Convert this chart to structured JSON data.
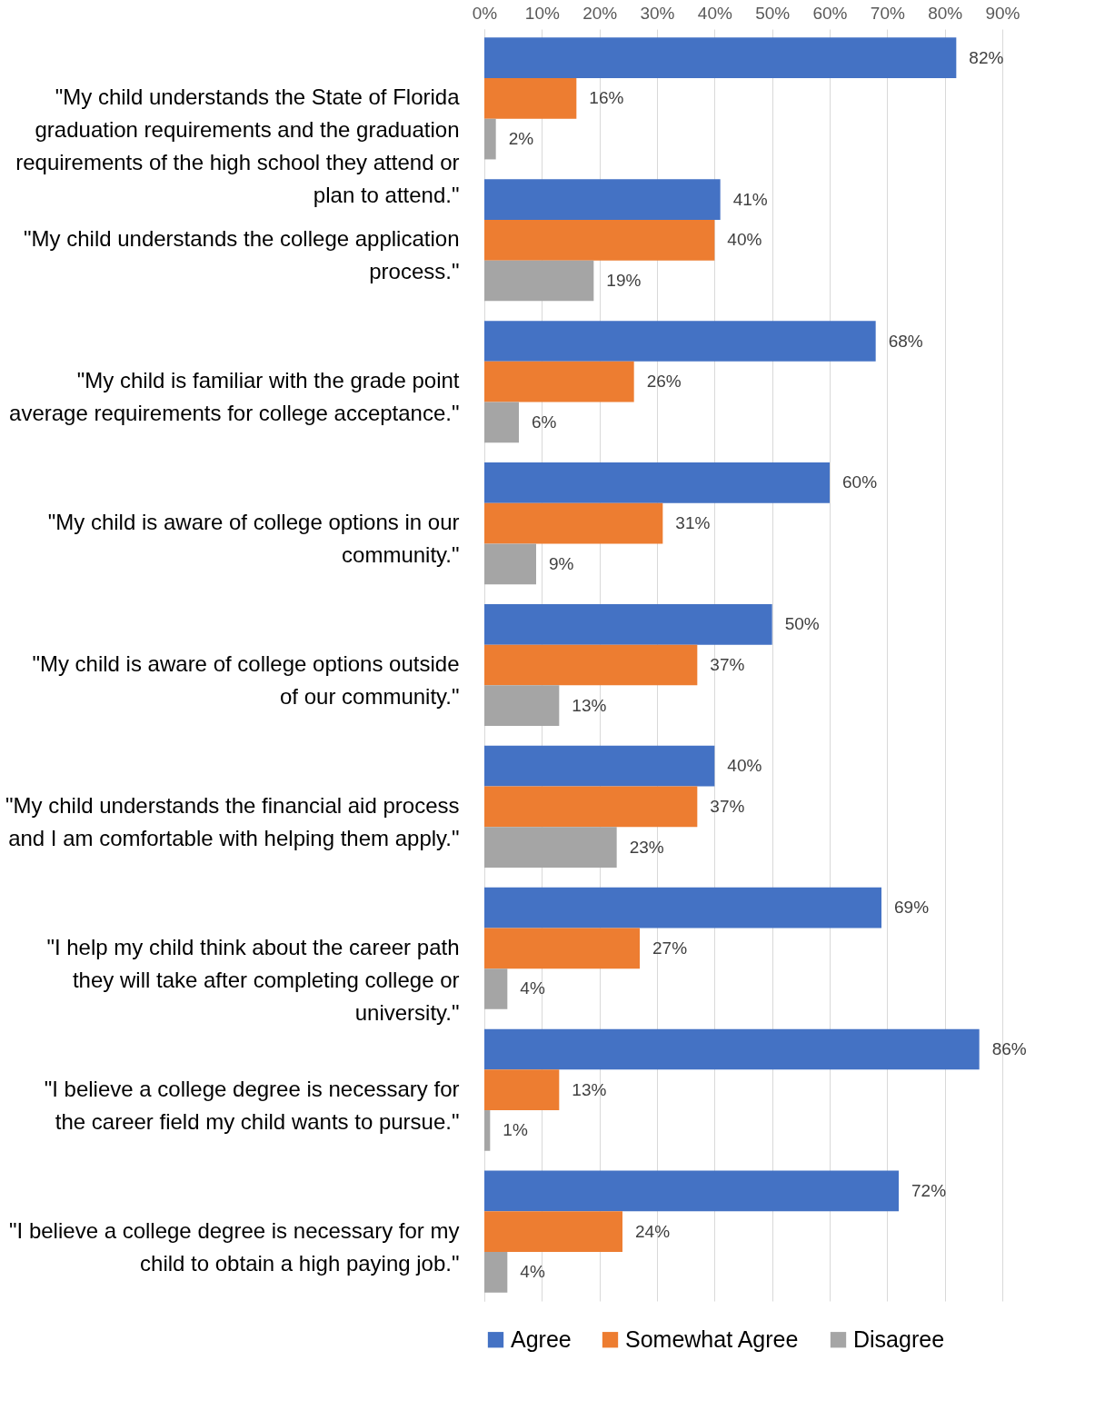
{
  "chart_data": {
    "type": "bar",
    "orientation": "horizontal",
    "categories": [
      "\"My child understands the State of Florida graduation requirements and the graduation requirements of the high school they attend or plan to attend.\"",
      "\"My child understands the college application process.\"",
      "\"My child is familiar with the grade point average requirements for college acceptance.\"",
      "\"My child is aware of college options in our community.\"",
      "\"My child is aware of college options outside of our community.\"",
      "\"My child understands the financial aid process and I am comfortable with helping them apply.\"",
      "\"I help my child think about the career path they will take after completing college or university.\"",
      "\"I believe a college degree is necessary for the career field my child wants to pursue.\"",
      "\"I believe a college degree is necessary for my child to obtain a high paying job.\""
    ],
    "series": [
      {
        "name": "Agree",
        "color": "#4472c4",
        "values": [
          82,
          41,
          68,
          60,
          50,
          40,
          69,
          86,
          72
        ],
        "value_labels": [
          "82%",
          "41%",
          "68%",
          "60%",
          "50%",
          "40%",
          "69%",
          "86%",
          "72%"
        ]
      },
      {
        "name": "Somewhat Agree",
        "color": "#ed7d31",
        "values": [
          16,
          40,
          26,
          31,
          37,
          37,
          27,
          13,
          24
        ],
        "value_labels": [
          "16%",
          "40%",
          "26%",
          "31%",
          "37%",
          "37%",
          "27%",
          "13%",
          "24%"
        ]
      },
      {
        "name": "Disagree",
        "color": "#a5a5a5",
        "values": [
          2,
          19,
          6,
          9,
          13,
          23,
          4,
          1,
          4
        ],
        "value_labels": [
          "2%",
          "19%",
          "6%",
          "9%",
          "13%",
          "23%",
          "4%",
          "1%",
          "4%"
        ]
      }
    ],
    "xlim": [
      0,
      90
    ],
    "xticks": [
      {
        "value": 0,
        "label": "0%"
      },
      {
        "value": 10,
        "label": "10%"
      },
      {
        "value": 20,
        "label": "20%"
      },
      {
        "value": 30,
        "label": "30%"
      },
      {
        "value": 40,
        "label": "40%"
      },
      {
        "value": 50,
        "label": "50%"
      },
      {
        "value": 60,
        "label": "60%"
      },
      {
        "value": 70,
        "label": "70%"
      },
      {
        "value": 80,
        "label": "80%"
      },
      {
        "value": 90,
        "label": "90%"
      }
    ],
    "grid": "x",
    "legend": "bottom"
  }
}
